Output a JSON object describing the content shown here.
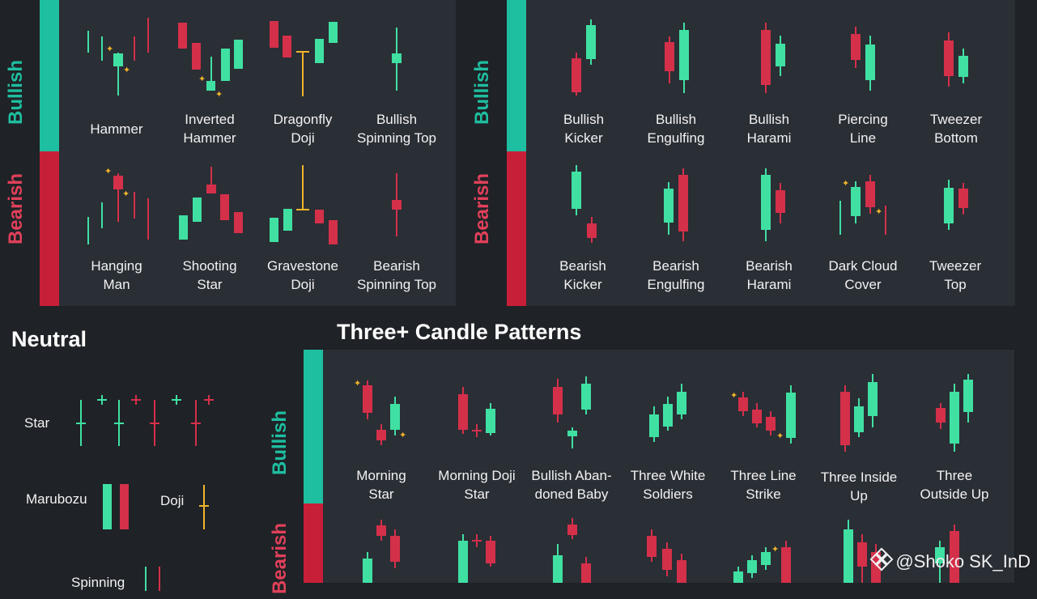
{
  "colors": {
    "bull": "#40e0a3",
    "bear": "#d4304a",
    "accent": "#f0b52a",
    "teal_bar": "#1ebea0",
    "red_bar": "#c81f38",
    "panel": "#2a2e35",
    "bg": "#1f2226"
  },
  "single_panel": {
    "bullish_label": "Bullish",
    "bearish_label": "Bearish",
    "bullish": [
      {
        "line1": "Hammer",
        "line2": ""
      },
      {
        "line1": "Inverted",
        "line2": "Hammer"
      },
      {
        "line1": "Dragonfly",
        "line2": "Doji"
      },
      {
        "line1": "Bullish",
        "line2": "Spinning Top"
      }
    ],
    "bearish": [
      {
        "line1": "Hanging",
        "line2": "Man"
      },
      {
        "line1": "Shooting",
        "line2": "Star"
      },
      {
        "line1": "Gravestone",
        "line2": "Doji"
      },
      {
        "line1": "Bearish",
        "line2": "Spinning Top"
      }
    ]
  },
  "double_panel": {
    "bullish_label": "Bullish",
    "bearish_label": "Bearish",
    "bullish": [
      {
        "line1": "Bullish",
        "line2": "Kicker"
      },
      {
        "line1": "Bullish",
        "line2": "Engulfing"
      },
      {
        "line1": "Bullish",
        "line2": "Harami"
      },
      {
        "line1": "Piercing",
        "line2": "Line"
      },
      {
        "line1": "Tweezer",
        "line2": "Bottom"
      }
    ],
    "bearish": [
      {
        "line1": "Bearish",
        "line2": "Kicker"
      },
      {
        "line1": "Bearish",
        "line2": "Engulfing"
      },
      {
        "line1": "Bearish",
        "line2": "Harami"
      },
      {
        "line1": "Dark Cloud",
        "line2": "Cover"
      },
      {
        "line1": "Tweezer",
        "line2": "Top"
      }
    ]
  },
  "neutral": {
    "title": "Neutral",
    "star_label": "Star",
    "marubozu_label": "Marubozu",
    "doji_label": "Doji",
    "spinning_label": "Spinning"
  },
  "three_panel": {
    "title": "Three+ Candle Patterns",
    "bullish_label": "Bullish",
    "bearish_label": "Bearish",
    "bullish": [
      {
        "line1": "Morning",
        "line2": "Star"
      },
      {
        "line1": "Morning Doji",
        "line2": "Star"
      },
      {
        "line1": "Bullish Aban-",
        "line2": "doned Baby"
      },
      {
        "line1": "Three White",
        "line2": "Soldiers"
      },
      {
        "line1": "Three Line",
        "line2": "Strike"
      },
      {
        "line1": "Three Inside",
        "line2": "Up"
      },
      {
        "line1": "Three",
        "line2": "Outside Up"
      }
    ]
  },
  "watermark": "@Shoko SK_InD"
}
